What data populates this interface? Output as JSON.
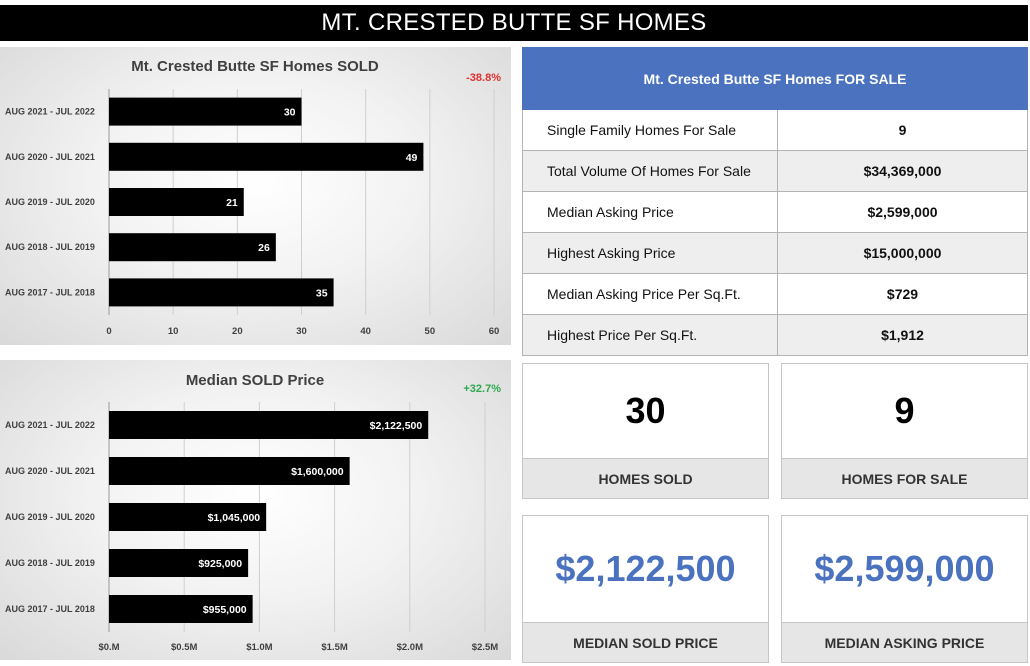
{
  "header": {
    "title": "MT. CRESTED BUTTE SF HOMES"
  },
  "chart_data": [
    {
      "type": "bar",
      "orientation": "horizontal",
      "title": "Mt. Crested Butte SF Homes SOLD",
      "change_label": "-38.8%",
      "categories": [
        "AUG 2021 - JUL 2022",
        "AUG 2020 - JUL 2021",
        "AUG 2019 - JUL 2020",
        "AUG 2018 - JUL 2019",
        "AUG 2017 - JUL 2018"
      ],
      "values": [
        30,
        49,
        21,
        26,
        35
      ],
      "value_labels": [
        "30",
        "49",
        "21",
        "26",
        "35"
      ],
      "xlim": [
        0,
        60
      ],
      "xticks": [
        0,
        10,
        20,
        30,
        40,
        50,
        60
      ],
      "xtick_labels": [
        "0",
        "10",
        "20",
        "30",
        "40",
        "50",
        "60"
      ],
      "grid": true,
      "bar_color": "#000000",
      "change_color": "#e0302e"
    },
    {
      "type": "bar",
      "orientation": "horizontal",
      "title": "Median SOLD Price",
      "change_label": "+32.7%",
      "categories": [
        "AUG 2021 - JUL 2022",
        "AUG 2020 - JUL 2021",
        "AUG 2019 - JUL 2020",
        "AUG 2018 - JUL 2019",
        "AUG 2017 - JUL 2018"
      ],
      "values": [
        2122500,
        1600000,
        1045000,
        925000,
        955000
      ],
      "value_labels": [
        "$2,122,500",
        "$1,600,000",
        "$1,045,000",
        "$925,000",
        "$955,000"
      ],
      "xlim": [
        0,
        2500000
      ],
      "xticks": [
        0,
        500000,
        1000000,
        1500000,
        2000000,
        2500000
      ],
      "xtick_labels": [
        "$0.M",
        "$0.5M",
        "$1.0M",
        "$1.5M",
        "$2.0M",
        "$2.5M"
      ],
      "grid": true,
      "bar_color": "#000000",
      "change_color": "#2fa84f"
    }
  ],
  "for_sale": {
    "title": "Mt. Crested Butte SF Homes FOR SALE",
    "rows": [
      {
        "label": "Single Family Homes For Sale",
        "value": "9"
      },
      {
        "label": "Total Volume Of Homes For Sale",
        "value": "$34,369,000"
      },
      {
        "label": "Median Asking Price",
        "value": "$2,599,000"
      },
      {
        "label": "Highest Asking Price",
        "value": "$15,000,000"
      },
      {
        "label": "Median Asking Price Per Sq.Ft.",
        "value": "$729"
      },
      {
        "label": "Highest Price Per Sq.Ft.",
        "value": "$1,912"
      }
    ]
  },
  "kpis": {
    "homes_sold": {
      "value": "30",
      "label": "HOMES SOLD"
    },
    "homes_for_sale": {
      "value": "9",
      "label": "HOMES FOR SALE"
    },
    "median_sold_price": {
      "value": "$2,122,500",
      "label": "MEDIAN SOLD PRICE"
    },
    "median_asking_price": {
      "value": "$2,599,000",
      "label": "MEDIAN ASKING PRICE"
    }
  },
  "colors": {
    "accent": "#4a72be",
    "negative": "#e0302e",
    "positive": "#2fa84f"
  }
}
